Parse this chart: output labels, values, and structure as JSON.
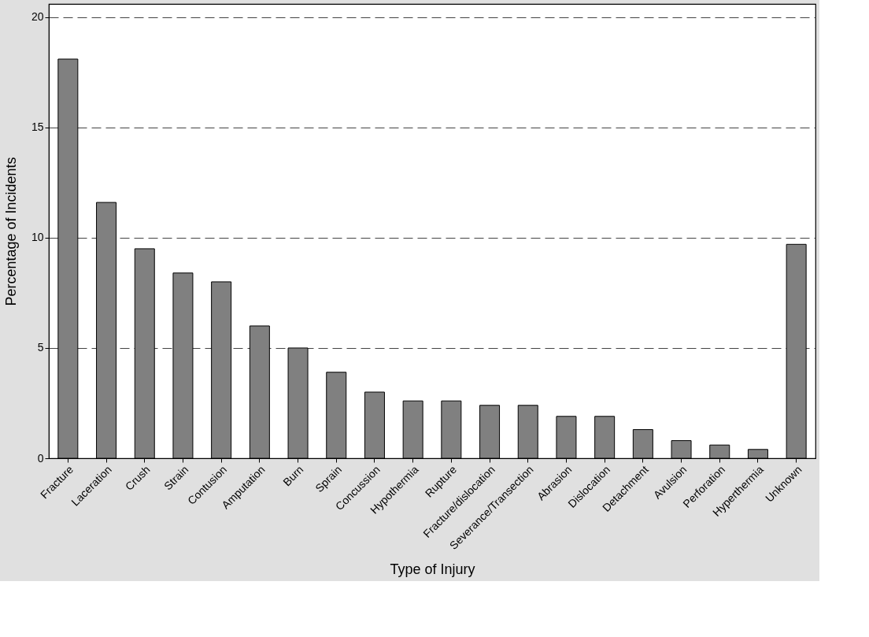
{
  "chart_data": {
    "type": "bar",
    "xlabel": "Type of Injury",
    "ylabel": "Percentage of Incidents",
    "categories": [
      "Fracture",
      "Laceration",
      "Crush",
      "Strain",
      "Contusion",
      "Amputation",
      "Burn",
      "Sprain",
      "Concussion",
      "Hypothermia",
      "Rupture",
      "Fracture/dislocation",
      "Severance/Transection",
      "Abrasion",
      "Dislocation",
      "Detachment",
      "Avulsion",
      "Perforation",
      "Hyperthermia",
      "Unknown"
    ],
    "values": [
      18.1,
      11.6,
      9.5,
      8.4,
      8.0,
      6.0,
      5.0,
      3.9,
      3.0,
      2.6,
      2.6,
      2.4,
      2.4,
      1.9,
      1.9,
      1.3,
      0.8,
      0.6,
      0.4,
      9.7
    ],
    "color": "#808080",
    "ylim": [
      0,
      20.6
    ],
    "yticks": [
      0,
      5,
      10,
      15,
      20
    ],
    "grid": "y"
  }
}
